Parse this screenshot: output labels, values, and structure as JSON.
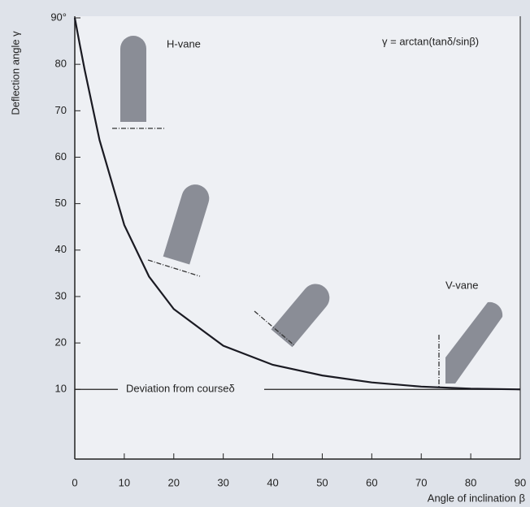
{
  "chart_data": {
    "type": "line",
    "y_label": "Deflection angle γ",
    "x_label": "Angle of inclination β",
    "formula": "γ = arctan(tanδ/sinβ)",
    "annotations": [
      "H-vane",
      "V-vane"
    ],
    "reference_line": {
      "value": 10,
      "label": "Deviation from courseδ"
    },
    "x": [
      0,
      1,
      2,
      5,
      10,
      15,
      20,
      30,
      40,
      50,
      60,
      70,
      80,
      90
    ],
    "series": [
      {
        "color": "#1a1a22",
        "values": [
          90,
          84.3,
          78.8,
          63.7,
          45.4,
          34.3,
          27.3,
          19.4,
          15.3,
          13.0,
          11.5,
          10.6,
          10.15,
          10
        ]
      }
    ],
    "xlim": [
      0,
      90
    ],
    "xticks": [
      0,
      10,
      20,
      30,
      40,
      50,
      60,
      70,
      80,
      90
    ],
    "ylim": [
      -5,
      90
    ],
    "yticks": [
      10,
      20,
      30,
      40,
      50,
      60,
      70,
      80,
      {
        "value": 90,
        "label": "90°"
      }
    ]
  }
}
